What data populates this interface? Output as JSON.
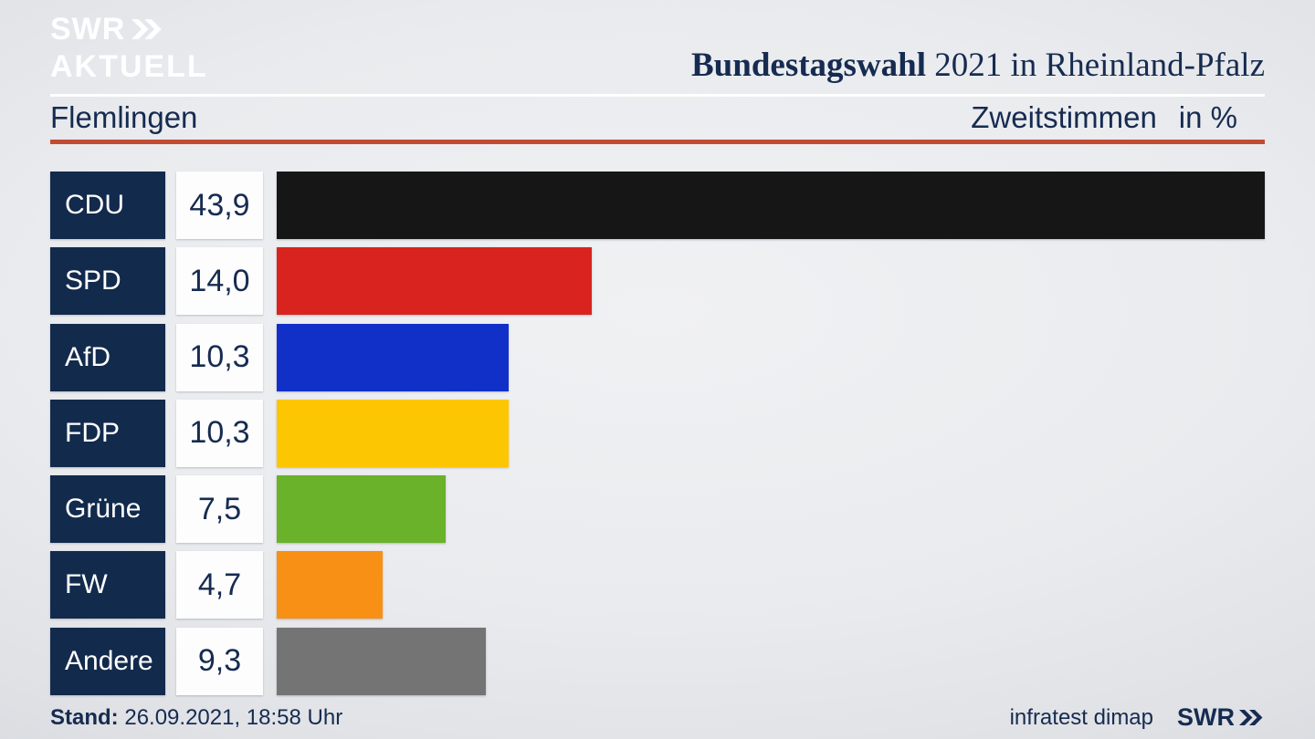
{
  "header": {
    "logo_line1": "SWR",
    "logo_line2": "AKTUELL",
    "title_bold": "Bundestagswahl",
    "title_rest": " 2021 in Rheinland-Pfalz"
  },
  "subheader": {
    "location": "Flemlingen",
    "metric": "Zweitstimmen",
    "unit": "in %"
  },
  "chart_data": {
    "type": "bar",
    "orientation": "horizontal",
    "title": "Bundestagswahl 2021 in Rheinland-Pfalz",
    "subtitle": "Flemlingen",
    "xlabel": "Zweitstimmen in %",
    "xlim": [
      0,
      43.9
    ],
    "grid": false,
    "legend": false,
    "categories": [
      "CDU",
      "SPD",
      "AfD",
      "FDP",
      "Grüne",
      "FW",
      "Andere"
    ],
    "values": [
      43.9,
      14.0,
      10.3,
      10.3,
      7.5,
      4.7,
      9.3
    ],
    "value_labels": [
      "43,9",
      "14,0",
      "10,3",
      "10,3",
      "7,5",
      "4,7",
      "9,3"
    ],
    "bar_colors": [
      "#161616",
      "#d8231f",
      "#1030c8",
      "#fdc603",
      "#69b22a",
      "#f79015",
      "#747474"
    ]
  },
  "footer": {
    "stand_label": "Stand:",
    "stand_value": " 26.09.2021, 18:58 Uhr",
    "source": "infratest dimap",
    "swr": "SWR"
  },
  "colors": {
    "navy_box": "#122a4c",
    "navy_text": "#162b50",
    "red_rule": "#c24b33",
    "logo_white": "#ffffff"
  }
}
